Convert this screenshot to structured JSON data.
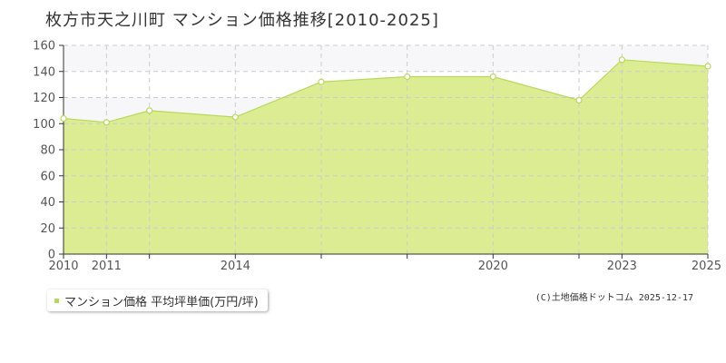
{
  "title": "枚方市天之川町 マンション価格推移[2010-2025]",
  "legend_label": "マンション価格 平均坪単価(万円/坪)",
  "credit": "(C)土地価格ドットコム 2025-12-17",
  "colors": {
    "fill": "#dbec93",
    "line": "#b7d95a",
    "band": "#f7f7f9",
    "grid": "#cccccc",
    "marker_fill": "#ffffff"
  },
  "chart_data": {
    "type": "area",
    "title": "枚方市天之川町 マンション価格推移[2010-2025]",
    "xlabel": "",
    "ylabel": "",
    "xlim": [
      2010,
      2025
    ],
    "ylim": [
      0,
      160
    ],
    "yticks": [
      0,
      20,
      40,
      60,
      80,
      100,
      120,
      140,
      160
    ],
    "xtick_labels": [
      "2010",
      "2011",
      "2014",
      "2020",
      "2023",
      "2025"
    ],
    "x_gridlines": [
      2010,
      2011,
      2012,
      2014,
      2016,
      2018,
      2020,
      2022,
      2023,
      2025
    ],
    "grid": true,
    "legend_position": "bottom-left",
    "series": [
      {
        "name": "マンション価格 平均坪単価(万円/坪)",
        "x": [
          2010,
          2011,
          2012,
          2014,
          2016,
          2018,
          2020,
          2022,
          2023,
          2025
        ],
        "values": [
          104,
          101,
          110,
          105,
          132,
          136,
          136,
          118,
          149,
          144
        ]
      }
    ]
  }
}
